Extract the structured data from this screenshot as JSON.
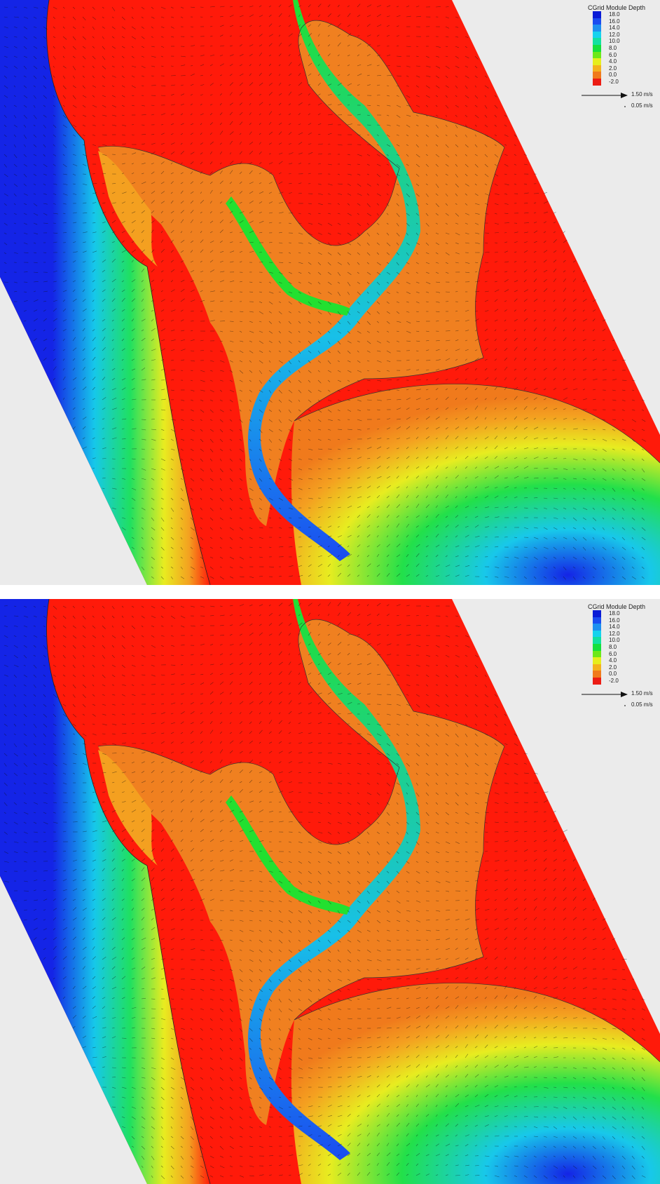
{
  "panels": [
    {
      "id": "top"
    },
    {
      "id": "bottom"
    }
  ],
  "legend": {
    "title": "CGrid Module Depth",
    "entries": [
      {
        "label": "18.0",
        "color": "#0a1bd6"
      },
      {
        "label": "16.0",
        "color": "#1a4cf0"
      },
      {
        "label": "14.0",
        "color": "#1e90f0"
      },
      {
        "label": "12.0",
        "color": "#16d2ee"
      },
      {
        "label": "10.0",
        "color": "#12e0a0"
      },
      {
        "label": "8.0",
        "color": "#16e03c"
      },
      {
        "label": "6.0",
        "color": "#6ee81a"
      },
      {
        "label": "4.0",
        "color": "#e6ee1e"
      },
      {
        "label": "2.0",
        "color": "#f4b21e"
      },
      {
        "label": "0.0",
        "color": "#f07a1c"
      },
      {
        "label": "-2.0",
        "color": "#ec1c14"
      }
    ],
    "vector_scale": [
      {
        "label": "1.50 m/s",
        "magnitude": 1.5
      },
      {
        "label": "0.05 m/s",
        "magnitude": 0.05
      }
    ]
  },
  "colors": {
    "land": "#ff1a0a",
    "shallow": "#f08020",
    "channel_green": "#22e030",
    "channel_cyan": "#18c8e8",
    "deep_blue": "#1424e6",
    "background": "#ebebeb",
    "arrow": "#111111"
  }
}
